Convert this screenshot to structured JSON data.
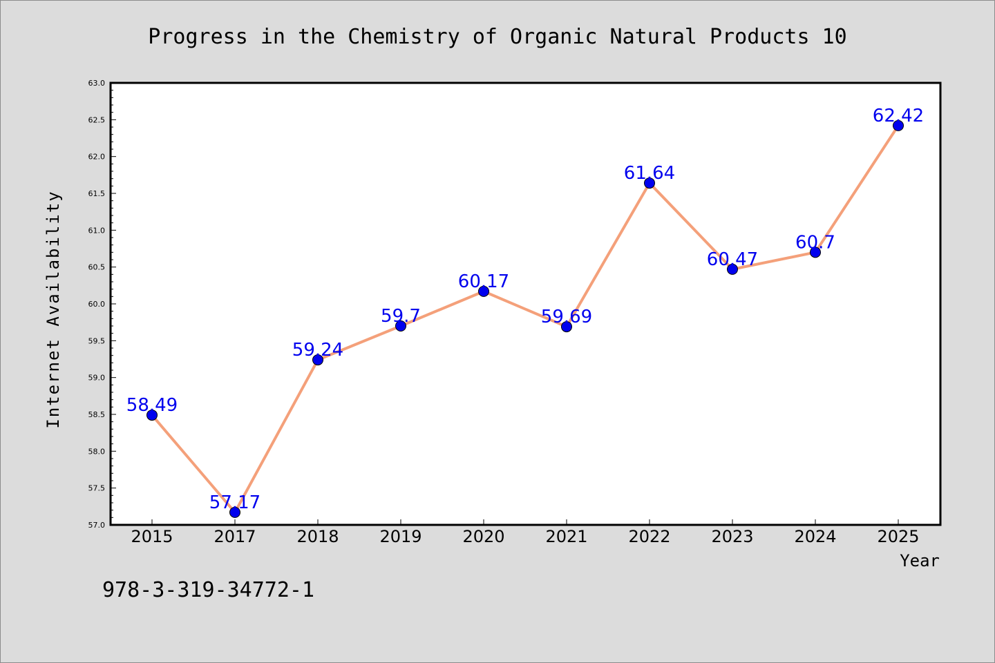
{
  "chart_data": {
    "type": "line",
    "title": "Progress in the Chemistry of Organic Natural Products 10",
    "xlabel": "Year",
    "ylabel": "Internet Availability",
    "categories": [
      "2015",
      "2017",
      "2018",
      "2019",
      "2020",
      "2021",
      "2022",
      "2023",
      "2024",
      "2025"
    ],
    "values": [
      58.49,
      57.17,
      59.24,
      59.7,
      60.17,
      59.69,
      61.64,
      60.47,
      60.7,
      62.42
    ],
    "data_labels": [
      "58.49",
      "57.17",
      "59.24",
      "59.7",
      "60.17",
      "59.69",
      "61.64",
      "60.47",
      "60.7",
      "62.42"
    ],
    "ylim": [
      57.0,
      63.0
    ],
    "yticks": [
      "57.0",
      "57.5",
      "58.0",
      "58.5",
      "59.0",
      "59.5",
      "60.0",
      "60.5",
      "61.0",
      "61.5",
      "62.0",
      "62.5",
      "63.0"
    ],
    "grid": false,
    "legend": "none",
    "colors": {
      "line": "#f4a07a",
      "marker": "#0000ee",
      "label": "#0000ee",
      "background": "#dcdcdc",
      "plot_background": "#ffffff"
    }
  },
  "footer_code": "978-3-319-34772-1"
}
